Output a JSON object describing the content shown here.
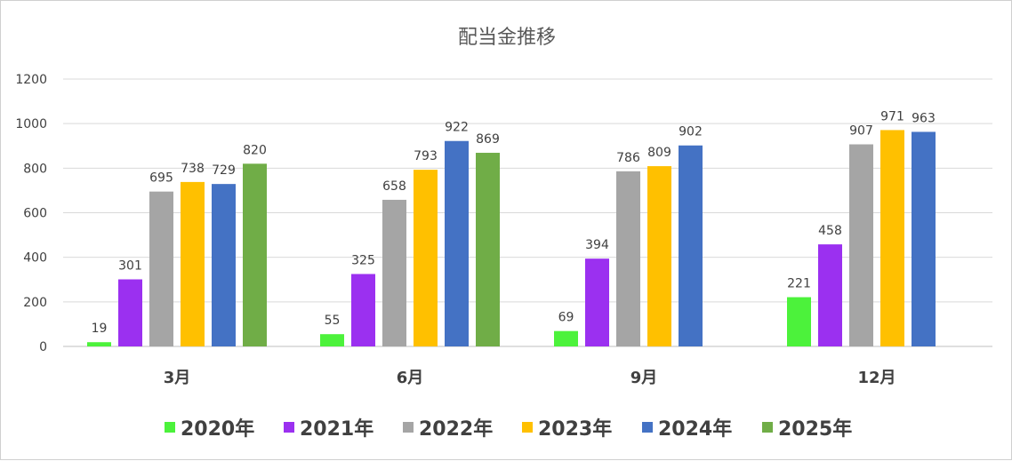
{
  "chart_data": {
    "type": "bar",
    "title": "配当金推移",
    "xlabel": "",
    "ylabel": "",
    "ylim": [
      0,
      1200
    ],
    "yticks": [
      "0",
      "200",
      "400",
      "600",
      "800",
      "1000",
      "1200"
    ],
    "ytick_values": [
      0,
      200,
      400,
      600,
      800,
      1000,
      1200
    ],
    "categories": [
      "3月",
      "6月",
      "9月",
      "12月"
    ],
    "grid": true,
    "legend_position": "bottom",
    "series": [
      {
        "name": "2020年",
        "color": "#4cf23b",
        "values": [
          19,
          55,
          69,
          221
        ],
        "labels": [
          "19",
          "55",
          "69",
          "221"
        ]
      },
      {
        "name": "2021年",
        "color": "#9b30f0",
        "values": [
          301,
          325,
          394,
          458
        ],
        "labels": [
          "301",
          "325",
          "394",
          "458"
        ]
      },
      {
        "name": "2022年",
        "color": "#a5a5a5",
        "values": [
          695,
          658,
          786,
          907
        ],
        "labels": [
          "695",
          "658",
          "786",
          "907"
        ]
      },
      {
        "name": "2023年",
        "color": "#ffc000",
        "values": [
          738,
          793,
          809,
          971
        ],
        "labels": [
          "738",
          "793",
          "809",
          "971"
        ]
      },
      {
        "name": "2024年",
        "color": "#4472c4",
        "values": [
          729,
          922,
          902,
          963
        ],
        "labels": [
          "729",
          "922",
          "902",
          "963"
        ]
      },
      {
        "name": "2025年",
        "color": "#70ad47",
        "values": [
          820,
          869,
          null,
          null
        ],
        "labels": [
          "820",
          "869",
          "",
          ""
        ]
      }
    ]
  }
}
